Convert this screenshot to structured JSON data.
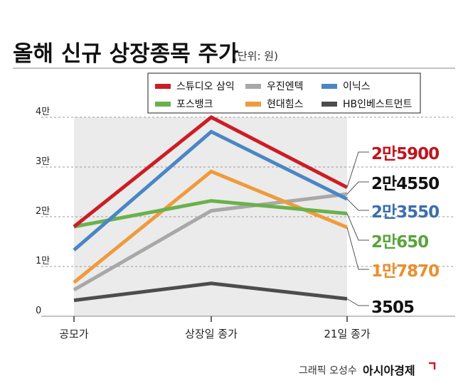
{
  "chart_data": {
    "type": "line",
    "title": "올해 신규 상장종목 주가",
    "unit": "(단위: 원)",
    "categories": [
      "공모가",
      "상장일 종가",
      "21일 종가"
    ],
    "y_tick_labels": [
      "0",
      "1만",
      "2만",
      "3만",
      "4만"
    ],
    "ylim": [
      0,
      40000
    ],
    "grid": true,
    "legend_position": "top-right",
    "series": [
      {
        "name": "스튜디오 삼익",
        "color": "#cc1d25",
        "values": [
          18000,
          40000,
          25900
        ],
        "end_label": "2만5900"
      },
      {
        "name": "우진엔텍",
        "color": "#a8a8a8",
        "values": [
          5300,
          21200,
          24550
        ],
        "end_label": "2만4550"
      },
      {
        "name": "이닉스",
        "color": "#4a86c5",
        "values": [
          13300,
          37100,
          23550
        ],
        "end_label": "2만3550"
      },
      {
        "name": "포스뱅크",
        "color": "#6ab14c",
        "values": [
          18000,
          23200,
          20650
        ],
        "end_label": "2만650"
      },
      {
        "name": "현대힘스",
        "color": "#ef9b3c",
        "values": [
          6800,
          29100,
          17870
        ],
        "end_label": "1만7870"
      },
      {
        "name": "HB인베스트먼트",
        "color": "#4d4d4d",
        "values": [
          3200,
          6600,
          3505
        ],
        "end_label": "3505"
      }
    ],
    "end_label_colors": {
      "스튜디오 삼익": "#c0141c",
      "우진엔텍": "#111111",
      "이닉스": "#3a6fae",
      "포스뱅크": "#5aa43c",
      "현대힘스": "#ec8e2c",
      "HB인베스트먼트": "#111111"
    }
  },
  "credit": {
    "graphic": "그래픽 오성수",
    "brand": "아시아경제"
  },
  "colors": {
    "grid": "#9a9a9a",
    "area_fill": "#ebebeb",
    "brand_mark": "#cc1d25"
  }
}
